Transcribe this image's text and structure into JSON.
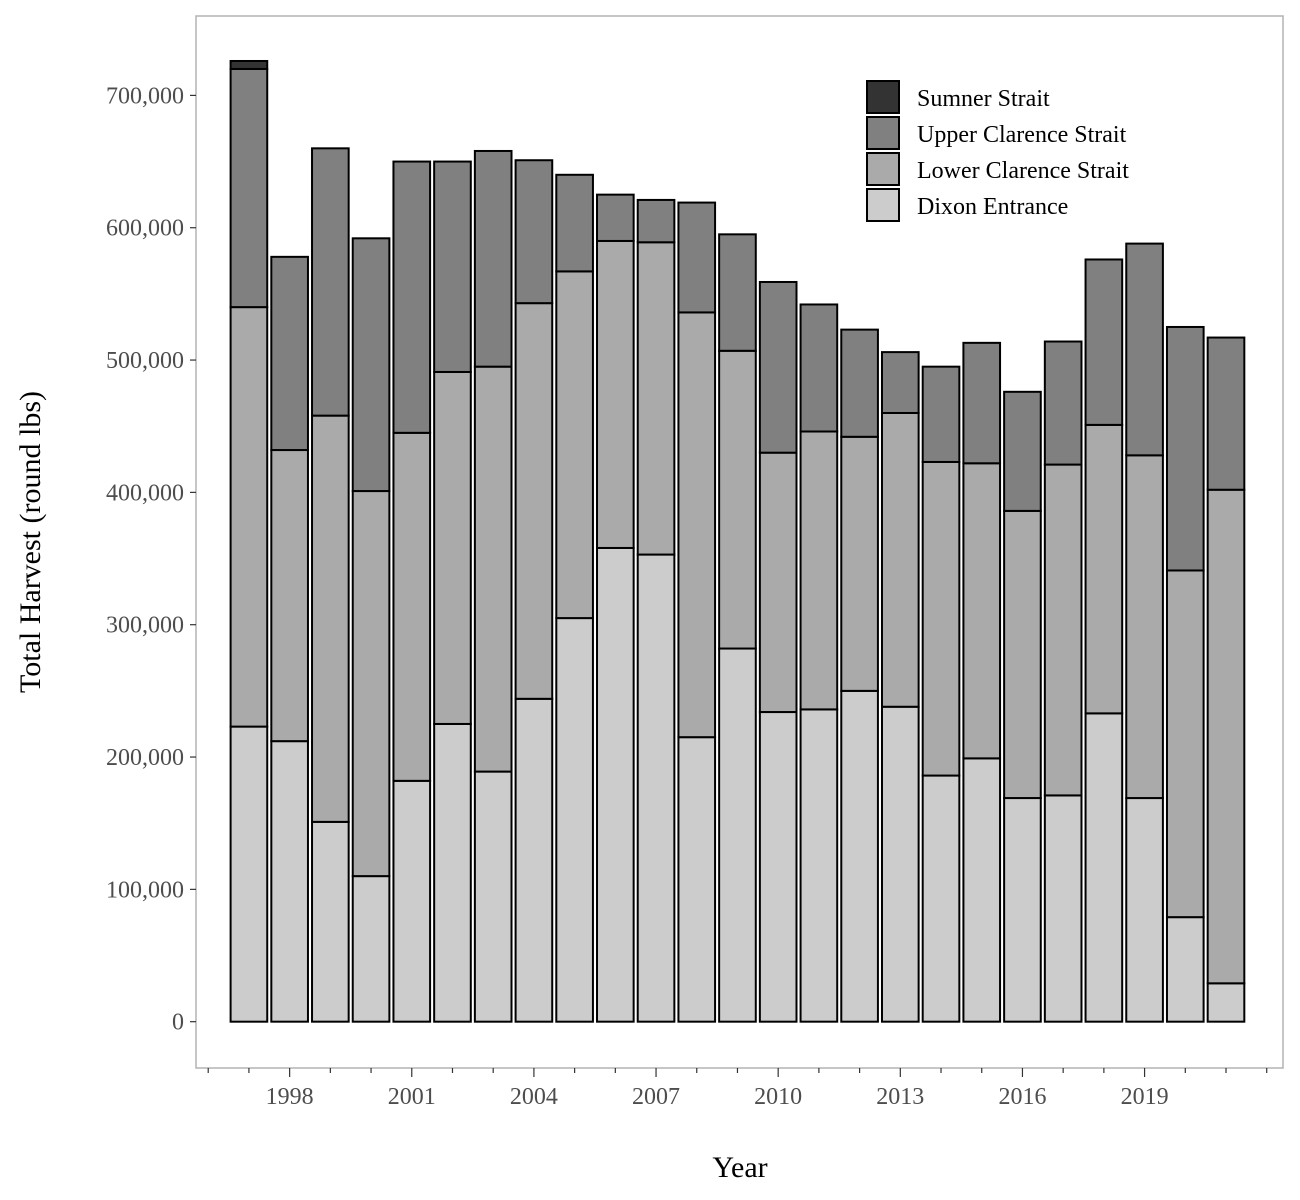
{
  "chart_data": {
    "type": "bar",
    "stacked": true,
    "title": "",
    "xlabel": "Year",
    "ylabel": "Total Harvest (round lbs)",
    "x": [
      1997,
      1998,
      1999,
      2000,
      2001,
      2002,
      2003,
      2004,
      2005,
      2006,
      2007,
      2008,
      2009,
      2010,
      2011,
      2012,
      2013,
      2014,
      2015,
      2016,
      2017,
      2018,
      2019,
      2020,
      2021
    ],
    "x_tick_labels": [
      "1998",
      "2001",
      "2004",
      "2007",
      "2010",
      "2013",
      "2016",
      "2019"
    ],
    "x_tick_values": [
      1998,
      2001,
      2004,
      2007,
      2010,
      2013,
      2016,
      2019
    ],
    "y_tick_labels": [
      "0",
      "100,000",
      "200,000",
      "300,000",
      "400,000",
      "500,000",
      "600,000",
      "700,000"
    ],
    "y_tick_values": [
      0,
      100000,
      200000,
      300000,
      400000,
      500000,
      600000,
      700000
    ],
    "ylim": [
      -35000,
      760000
    ],
    "xlim": [
      1995.7,
      2022.4
    ],
    "grid": false,
    "legend_position": "top-right",
    "series": [
      {
        "name": "Dixon Entrance",
        "color": "#cccccc",
        "values": [
          223000,
          212000,
          151000,
          110000,
          182000,
          225000,
          189000,
          244000,
          305000,
          358000,
          353000,
          215000,
          282000,
          234000,
          236000,
          250000,
          238000,
          186000,
          199000,
          169000,
          171000,
          233000,
          169000,
          79000,
          29000
        ]
      },
      {
        "name": "Lower Clarence Strait",
        "color": "#aaaaaa",
        "values": [
          317000,
          220000,
          307000,
          291000,
          263000,
          266000,
          306000,
          299000,
          262000,
          232000,
          236000,
          321000,
          225000,
          196000,
          210000,
          192000,
          222000,
          237000,
          223000,
          217000,
          250000,
          218000,
          259000,
          262000,
          373000
        ]
      },
      {
        "name": "Upper Clarence Strait",
        "color": "#808080",
        "values": [
          180000,
          146000,
          202000,
          191000,
          205000,
          159000,
          163000,
          108000,
          73000,
          35000,
          32000,
          83000,
          88000,
          129000,
          96000,
          81000,
          46000,
          72000,
          91000,
          90000,
          93000,
          125000,
          160000,
          184000,
          115000
        ]
      },
      {
        "name": "Sumner Strait",
        "color": "#333333",
        "values": [
          6000,
          0,
          0,
          0,
          0,
          0,
          0,
          0,
          0,
          0,
          0,
          0,
          0,
          0,
          0,
          0,
          0,
          0,
          0,
          0,
          0,
          0,
          0,
          0,
          0
        ]
      }
    ]
  }
}
